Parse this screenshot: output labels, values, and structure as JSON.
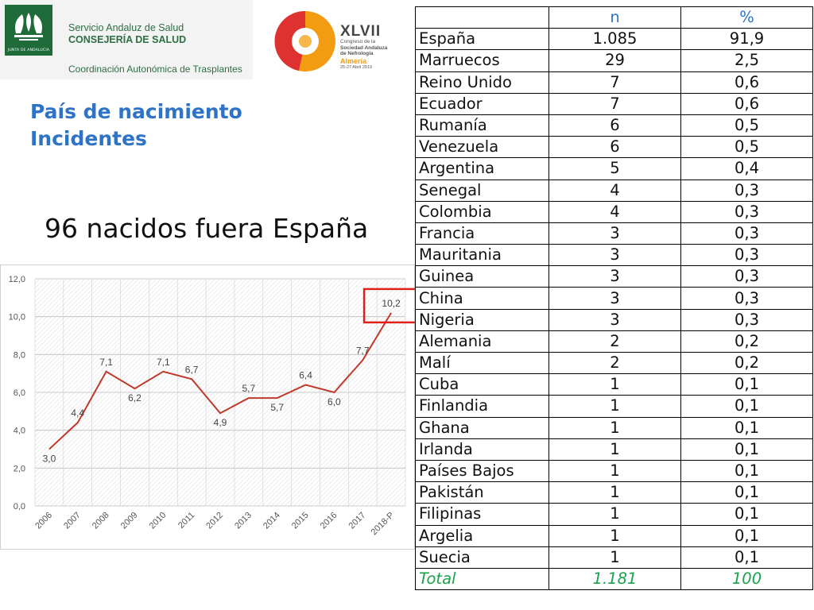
{
  "header": {
    "sas_line1": "Servicio Andaluz de Salud",
    "sas_line2": "CONSEJERÍA DE SALUD",
    "sas_line3": "Coordinación Autonómica de Trasplantes",
    "junta_caption": "JUNTA DE ANDALUCIA",
    "congress_number": "XLVII",
    "congress_line1": "Congreso de la",
    "congress_line2": "Sociedad Andaluza",
    "congress_line3": "de Nefrología",
    "congress_city": "Almería",
    "congress_date": "25-27 Abril 2019"
  },
  "title": {
    "line1": "País de nacimiento",
    "line2": "Incidentes"
  },
  "headline": "96 nacidos fuera España",
  "colors": {
    "title": "#2e73c5",
    "line": "#c0392b",
    "highlight": "#e0201b",
    "total": "#1aa34a"
  },
  "chart_data": {
    "type": "line",
    "title": "",
    "xlabel": "",
    "ylabel": "",
    "categories": [
      "2006",
      "2007",
      "2008",
      "2009",
      "2010",
      "2011",
      "2012",
      "2013",
      "2014",
      "2015",
      "2016",
      "2017",
      "2018-P"
    ],
    "values": [
      3.0,
      4.4,
      7.1,
      6.2,
      7.1,
      6.7,
      4.9,
      5.7,
      5.7,
      6.4,
      6.0,
      7.7,
      10.2
    ],
    "data_labels": [
      "3,0",
      "4,4",
      "7,1",
      "6,2",
      "7,1",
      "6,7",
      "4,9",
      "5,7",
      "5,7",
      "6,4",
      "6,0",
      "7,7",
      "10,2"
    ],
    "yticks": [
      "0,0",
      "2,0",
      "4,0",
      "6,0",
      "8,0",
      "10,0",
      "12,0"
    ],
    "ylim": [
      0,
      12
    ],
    "grid": true,
    "highlight_category": "2018-P"
  },
  "table": {
    "headers": [
      "",
      "n",
      "%"
    ],
    "rows": [
      [
        "España",
        "1.085",
        "91,9"
      ],
      [
        "Marruecos",
        "29",
        "2,5"
      ],
      [
        "Reino Unido",
        "7",
        "0,6"
      ],
      [
        "Ecuador",
        "7",
        "0,6"
      ],
      [
        "Rumanía",
        "6",
        "0,5"
      ],
      [
        "Venezuela",
        "6",
        "0,5"
      ],
      [
        "Argentina",
        "5",
        "0,4"
      ],
      [
        "Senegal",
        "4",
        "0,3"
      ],
      [
        "Colombia",
        "4",
        "0,3"
      ],
      [
        "Francia",
        "3",
        "0,3"
      ],
      [
        "Mauritania",
        "3",
        "0,3"
      ],
      [
        "Guinea",
        "3",
        "0,3"
      ],
      [
        "China",
        "3",
        "0,3"
      ],
      [
        "Nigeria",
        "3",
        "0,3"
      ],
      [
        "Alemania",
        "2",
        "0,2"
      ],
      [
        "Malí",
        "2",
        "0,2"
      ],
      [
        "Cuba",
        "1",
        "0,1"
      ],
      [
        "Finlandia",
        "1",
        "0,1"
      ],
      [
        "Ghana",
        "1",
        "0,1"
      ],
      [
        "Irlanda",
        "1",
        "0,1"
      ],
      [
        "Países Bajos",
        "1",
        "0,1"
      ],
      [
        "Pakistán",
        "1",
        "0,1"
      ],
      [
        "Filipinas",
        "1",
        "0,1"
      ],
      [
        "Argelia",
        "1",
        "0,1"
      ],
      [
        "Suecia",
        "1",
        "0,1"
      ]
    ],
    "total": [
      "Total",
      "1.181",
      "100"
    ]
  }
}
